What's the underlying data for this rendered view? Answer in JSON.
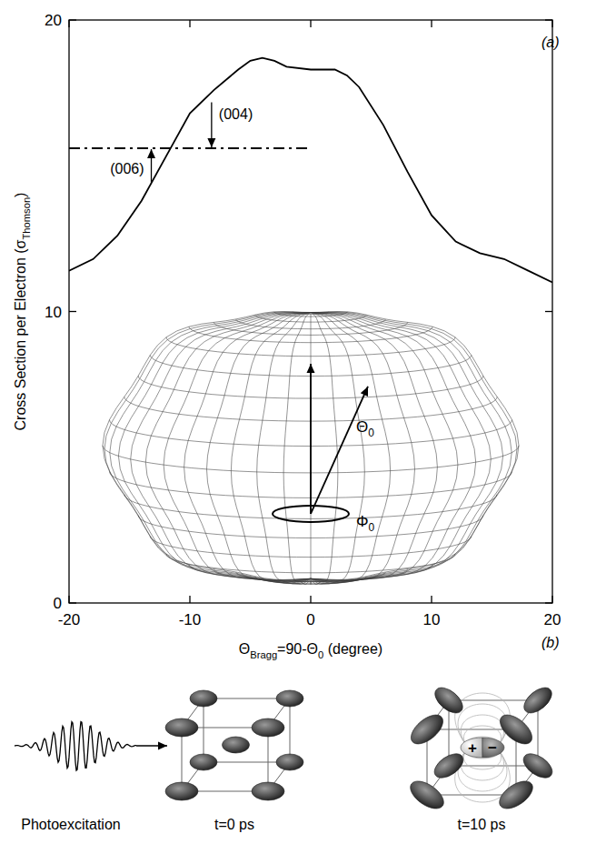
{
  "chart_data": {
    "type": "line",
    "xlabel": "ΘBragg=90-Θ0 (degree)",
    "ylabel": "Cross Section per Electron (σThomson)",
    "xlim": [
      -20,
      20
    ],
    "ylim": [
      0,
      20
    ],
    "xticks": [
      -20,
      -10,
      0,
      10,
      20
    ],
    "yticks": [
      0,
      10,
      20
    ],
    "grid": false,
    "series": [
      {
        "x": [
          -20,
          -18,
          -16,
          -14,
          -12,
          -10,
          -8,
          -6,
          -5,
          -4,
          -3,
          -2,
          0,
          2,
          3,
          4,
          6,
          8,
          10,
          12,
          14,
          16,
          18,
          20
        ],
        "values": [
          11.4,
          11.8,
          12.6,
          13.8,
          15.3,
          16.8,
          17.6,
          18.3,
          18.6,
          18.7,
          18.6,
          18.4,
          18.3,
          18.3,
          18.1,
          17.7,
          16.4,
          14.8,
          13.3,
          12.4,
          12.0,
          11.8,
          11.4,
          11.0
        ],
        "color": "#000000",
        "line_style": "solid"
      },
      {
        "x": [
          -20,
          0
        ],
        "values": [
          15.6,
          15.6
        ],
        "color": "#000000",
        "line_style": "dashdot"
      }
    ],
    "annotations": [
      {
        "text": "(004)",
        "x": -6.2,
        "y": 16.8
      },
      {
        "text": "(006)",
        "x": -15.2,
        "y": 14.9
      }
    ]
  },
  "figure": {
    "panel_labels": [
      "(a)",
      "(b)"
    ],
    "inset_labels": [
      "Θ0",
      "Φ0"
    ],
    "diagram": {
      "photoexcitation": "Photoexcitation",
      "times": [
        "t=0 ps",
        "t=10 ps"
      ],
      "charges": [
        "+",
        "−"
      ]
    }
  }
}
